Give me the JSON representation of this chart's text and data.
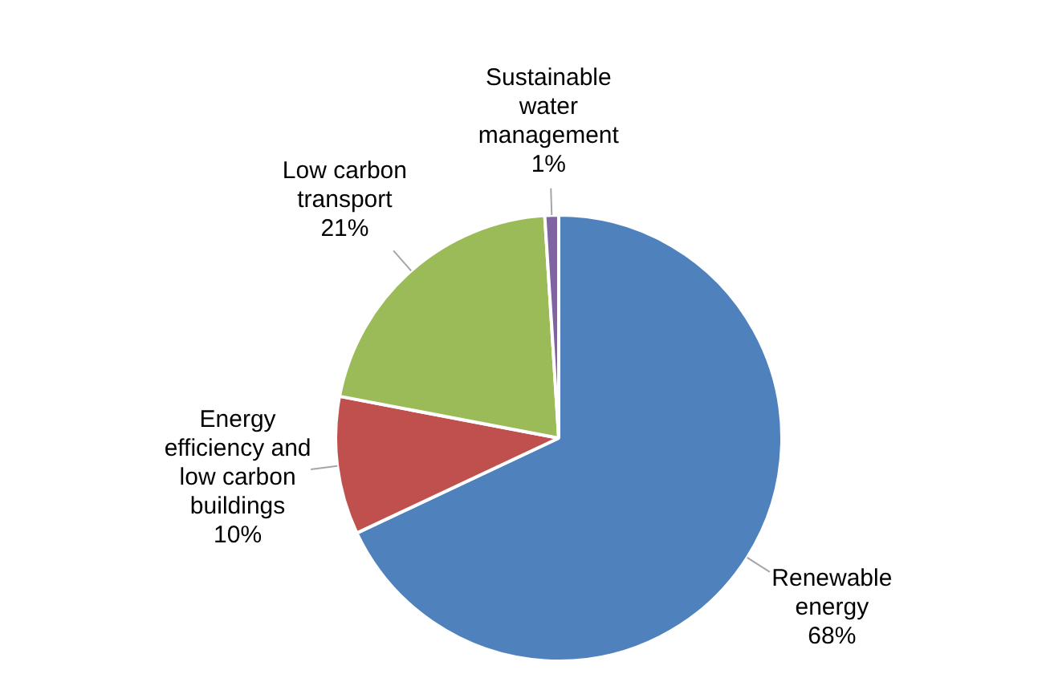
{
  "chart_data": {
    "type": "pie",
    "categories": [
      "Renewable energy",
      "Energy efficiency and low carbon buildings",
      "Low carbon transport",
      "Sustainable water management"
    ],
    "values": [
      68,
      10,
      21,
      1
    ],
    "value_labels": [
      "68%",
      "10%",
      "21%",
      "1%"
    ],
    "colors": [
      "#4f81bd",
      "#c0504d",
      "#9bbb59",
      "#8064a2"
    ],
    "legend": false
  }
}
